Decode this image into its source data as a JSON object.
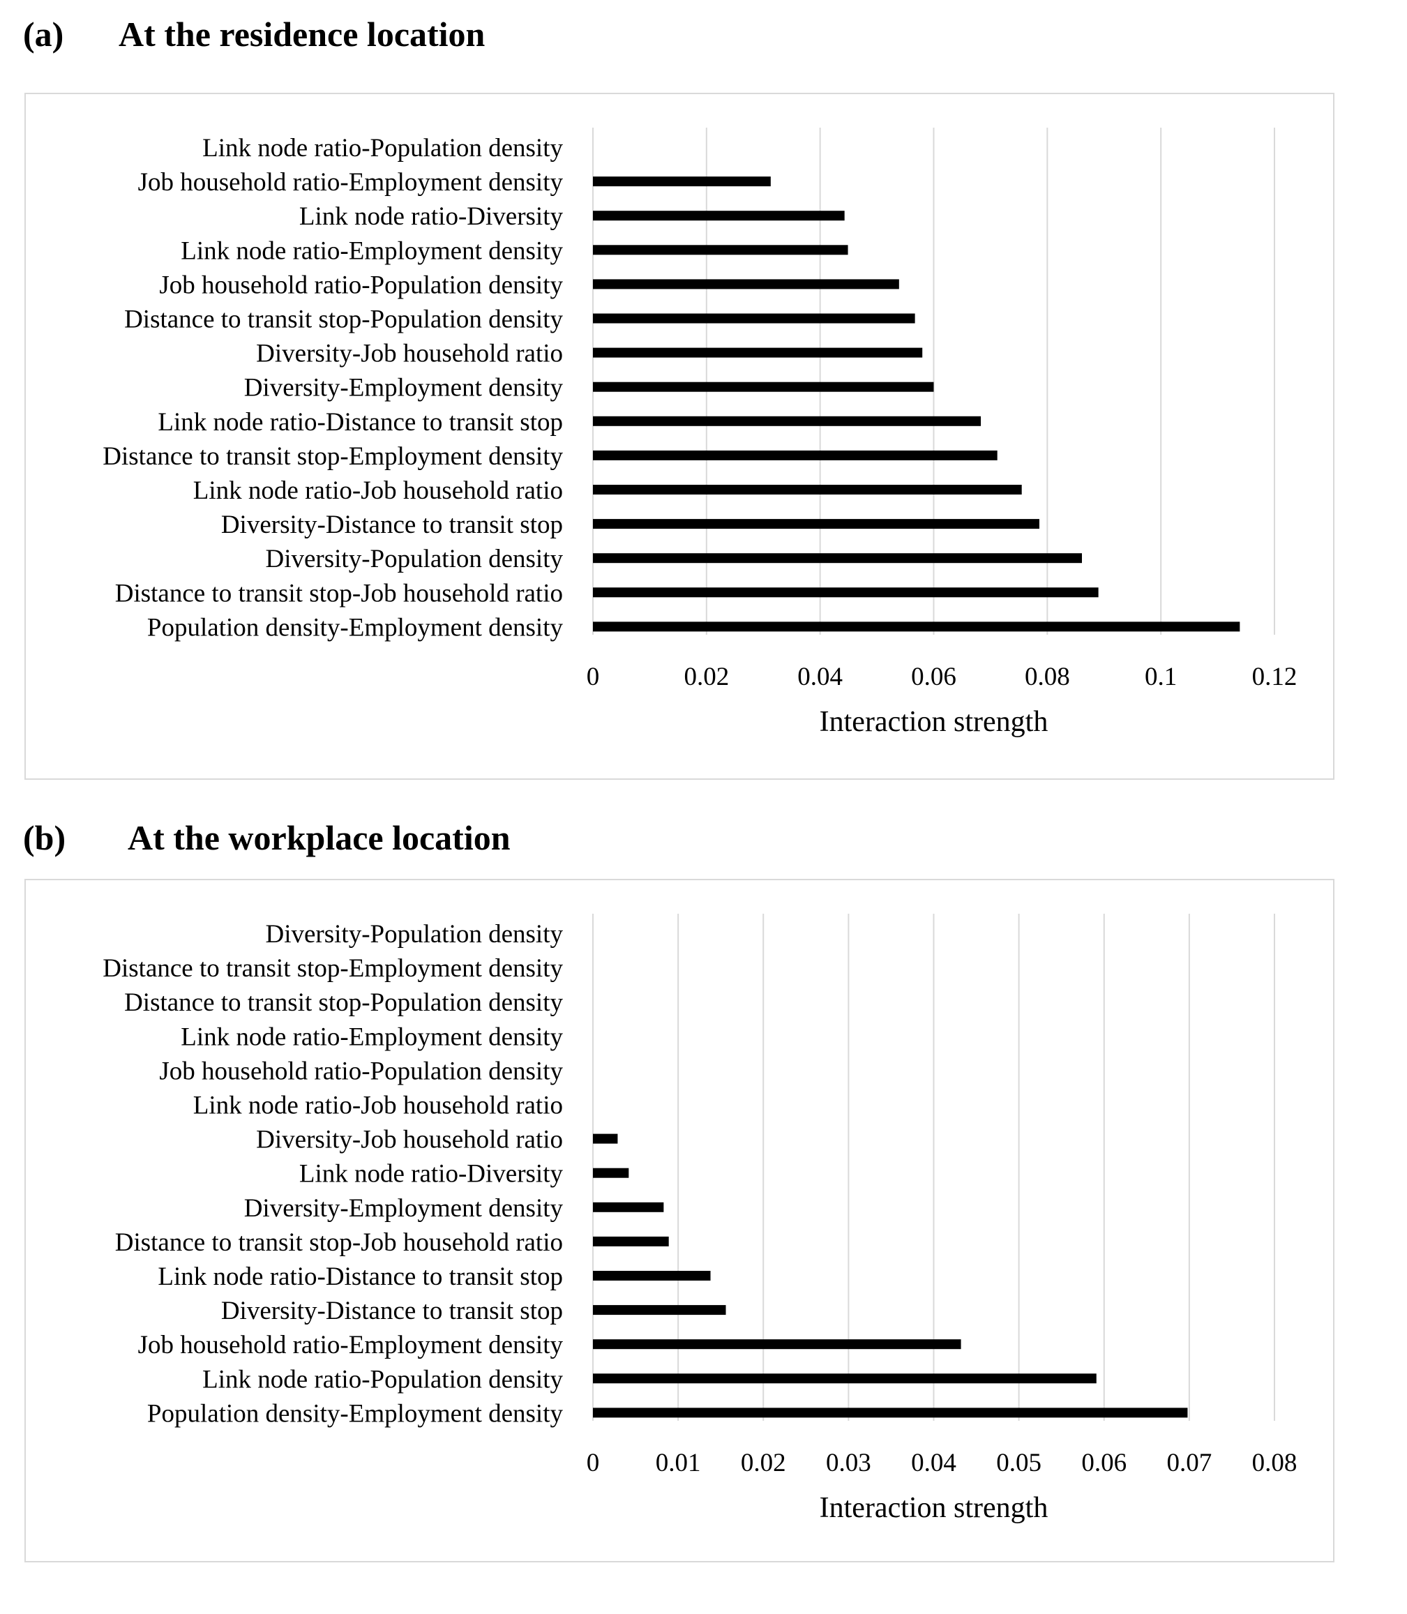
{
  "panels": [
    {
      "letter": "(a)",
      "title": "At the residence location"
    },
    {
      "letter": "(b)",
      "title": "At the workplace location"
    }
  ],
  "chart_data": [
    {
      "type": "bar",
      "orientation": "horizontal",
      "xlabel": "Interaction strength",
      "xlim": [
        0,
        0.12
      ],
      "xticks": [
        "0",
        "0.02",
        "0.04",
        "0.06",
        "0.08",
        "0.1",
        "0.12"
      ],
      "grid": "vertical",
      "bar_color": "#000000",
      "categories": [
        "Link node ratio-Population density",
        "Job household ratio-Employment density",
        "Link node ratio-Diversity",
        "Link node ratio-Employment density",
        "Job household ratio-Population density",
        "Distance to transit stop-Population density",
        "Diversity-Job household ratio",
        "Diversity-Employment density",
        "Link node ratio-Distance to transit stop",
        "Distance to transit stop-Employment density",
        "Link node ratio-Job household ratio",
        "Diversity-Distance to transit stop",
        "Diversity-Population density",
        "Distance to transit stop-Job household ratio",
        "Population density-Employment density"
      ],
      "values": [
        0,
        0.0313,
        0.0443,
        0.0449,
        0.0539,
        0.0567,
        0.058,
        0.06,
        0.0683,
        0.0712,
        0.0755,
        0.0786,
        0.0861,
        0.089,
        0.1139
      ]
    },
    {
      "type": "bar",
      "orientation": "horizontal",
      "xlabel": "Interaction strength",
      "xlim": [
        0,
        0.08
      ],
      "xticks": [
        "0",
        "0.01",
        "0.02",
        "0.03",
        "0.04",
        "0.05",
        "0.06",
        "0.07",
        "0.08"
      ],
      "grid": "vertical",
      "bar_color": "#000000",
      "categories": [
        "Diversity-Population density",
        "Distance to transit stop-Employment density",
        "Distance to transit stop-Population density",
        "Link node ratio-Employment density",
        "Job household ratio-Population density",
        "Link node ratio-Job household ratio",
        "Diversity-Job household ratio",
        "Link node ratio-Diversity",
        "Diversity-Employment density",
        "Distance to transit stop-Job household ratio",
        "Link node ratio-Distance to transit stop",
        "Diversity-Distance to transit stop",
        "Job household ratio-Employment density",
        "Link node ratio-Population density",
        "Population density-Employment density"
      ],
      "values": [
        0,
        0,
        0,
        0,
        0,
        0,
        0.0029,
        0.0042,
        0.0083,
        0.0089,
        0.0138,
        0.0156,
        0.0432,
        0.0591,
        0.0698
      ]
    }
  ]
}
